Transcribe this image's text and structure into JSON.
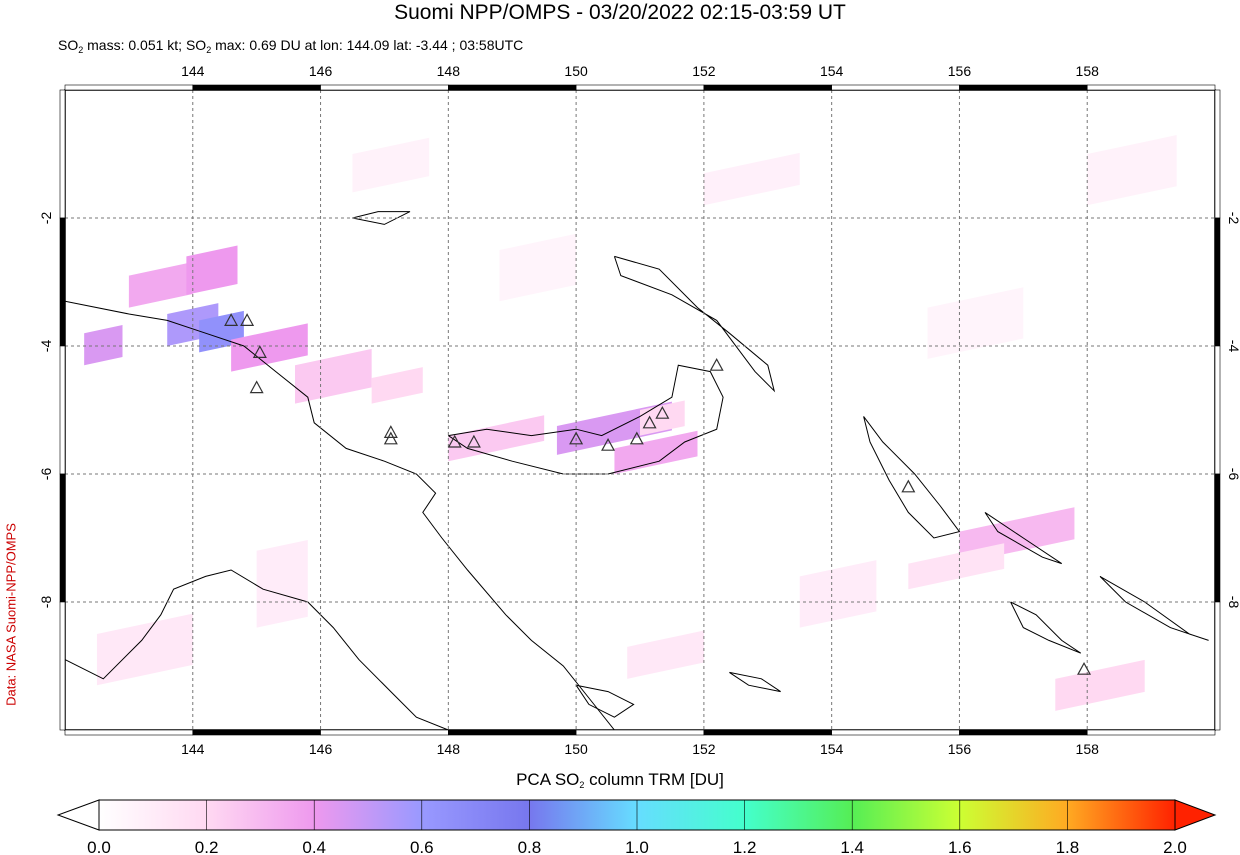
{
  "title": "Suomi NPP/OMPS - 03/20/2022 02:15-03:59 UT",
  "info": {
    "mass_prefix": "SO",
    "mass_sub": "2",
    "mass_text": " mass: 0.051 kt; ",
    "max_prefix": "SO",
    "max_sub": "2",
    "max_text": " max: 0.69 DU at lon: 144.09 lat: -3.44 ; 03:58UTC"
  },
  "side_label": "Data: NASA Suomi-NPP/OMPS",
  "colorbar": {
    "title_prefix": "PCA SO",
    "title_sub": "2",
    "title_suffix": " column TRM [DU]",
    "ticks": [
      "0.0",
      "0.2",
      "0.4",
      "0.6",
      "0.8",
      "1.0",
      "1.2",
      "1.4",
      "1.6",
      "1.8",
      "2.0"
    ],
    "colors": [
      "#ffffff",
      "#ffd9f2",
      "#ee99ee",
      "#9999ff",
      "#7777ee",
      "#66ddff",
      "#44ffcc",
      "#55ee55",
      "#ccff33",
      "#ffaa22",
      "#ff2200"
    ]
  },
  "map": {
    "lon_ticks": [
      "144",
      "146",
      "148",
      "150",
      "152",
      "154",
      "156",
      "158"
    ],
    "lat_ticks": [
      "-2",
      "-4",
      "-6",
      "-8"
    ],
    "lon_range": [
      142,
      160
    ],
    "lat_range": [
      -10,
      0
    ],
    "volcanoes": [
      {
        "lon": 144.6,
        "lat": -3.6
      },
      {
        "lon": 144.85,
        "lat": -3.6
      },
      {
        "lon": 145.05,
        "lat": -4.1
      },
      {
        "lon": 145.0,
        "lat": -4.65
      },
      {
        "lon": 147.1,
        "lat": -5.35
      },
      {
        "lon": 147.1,
        "lat": -5.45
      },
      {
        "lon": 148.1,
        "lat": -5.5
      },
      {
        "lon": 148.4,
        "lat": -5.5
      },
      {
        "lon": 150.0,
        "lat": -5.45
      },
      {
        "lon": 150.5,
        "lat": -5.55
      },
      {
        "lon": 150.95,
        "lat": -5.45
      },
      {
        "lon": 151.15,
        "lat": -5.2
      },
      {
        "lon": 151.35,
        "lat": -5.05
      },
      {
        "lon": 152.2,
        "lat": -4.3
      },
      {
        "lon": 155.2,
        "lat": -6.2
      },
      {
        "lon": 157.95,
        "lat": -9.05
      }
    ],
    "so2_cells": [
      {
        "lon": 143.0,
        "lat": -2.9,
        "w": 1.0,
        "h": 0.5,
        "v": 0.35
      },
      {
        "lon": 143.9,
        "lat": -2.6,
        "w": 0.8,
        "h": 0.6,
        "v": 0.4
      },
      {
        "lon": 143.6,
        "lat": -3.5,
        "w": 0.8,
        "h": 0.5,
        "v": 0.55
      },
      {
        "lon": 144.1,
        "lat": -3.6,
        "w": 0.7,
        "h": 0.5,
        "v": 0.65
      },
      {
        "lon": 142.3,
        "lat": -3.8,
        "w": 0.6,
        "h": 0.5,
        "v": 0.45
      },
      {
        "lon": 144.6,
        "lat": -3.9,
        "w": 1.2,
        "h": 0.5,
        "v": 0.4
      },
      {
        "lon": 145.6,
        "lat": -4.3,
        "w": 1.2,
        "h": 0.6,
        "v": 0.25
      },
      {
        "lon": 146.8,
        "lat": -4.5,
        "w": 0.8,
        "h": 0.4,
        "v": 0.2
      },
      {
        "lon": 148.0,
        "lat": -5.4,
        "w": 1.5,
        "h": 0.4,
        "v": 0.25
      },
      {
        "lon": 149.7,
        "lat": -5.25,
        "w": 1.8,
        "h": 0.45,
        "v": 0.45
      },
      {
        "lon": 150.6,
        "lat": -5.6,
        "w": 1.3,
        "h": 0.4,
        "v": 0.35
      },
      {
        "lon": 151.0,
        "lat": -5.0,
        "w": 0.7,
        "h": 0.4,
        "v": 0.2
      },
      {
        "lon": 156.0,
        "lat": -6.9,
        "w": 1.8,
        "h": 0.5,
        "v": 0.3
      },
      {
        "lon": 155.2,
        "lat": -7.4,
        "w": 1.5,
        "h": 0.4,
        "v": 0.15
      },
      {
        "lon": 157.5,
        "lat": -9.2,
        "w": 1.4,
        "h": 0.5,
        "v": 0.2
      },
      {
        "lon": 142.5,
        "lat": -8.5,
        "w": 1.5,
        "h": 0.8,
        "v": 0.12
      },
      {
        "lon": 145.0,
        "lat": -7.2,
        "w": 0.8,
        "h": 1.2,
        "v": 0.1
      },
      {
        "lon": 153.5,
        "lat": -7.6,
        "w": 1.2,
        "h": 0.8,
        "v": 0.1
      },
      {
        "lon": 150.8,
        "lat": -8.7,
        "w": 1.2,
        "h": 0.5,
        "v": 0.12
      },
      {
        "lon": 152.0,
        "lat": -1.3,
        "w": 1.5,
        "h": 0.5,
        "v": 0.08
      },
      {
        "lon": 146.5,
        "lat": -1.0,
        "w": 1.2,
        "h": 0.6,
        "v": 0.07
      },
      {
        "lon": 158.0,
        "lat": -1.0,
        "w": 1.4,
        "h": 0.8,
        "v": 0.07
      },
      {
        "lon": 155.5,
        "lat": -3.4,
        "w": 1.5,
        "h": 0.8,
        "v": 0.06
      },
      {
        "lon": 148.8,
        "lat": -2.5,
        "w": 1.2,
        "h": 0.8,
        "v": 0.06
      }
    ]
  }
}
